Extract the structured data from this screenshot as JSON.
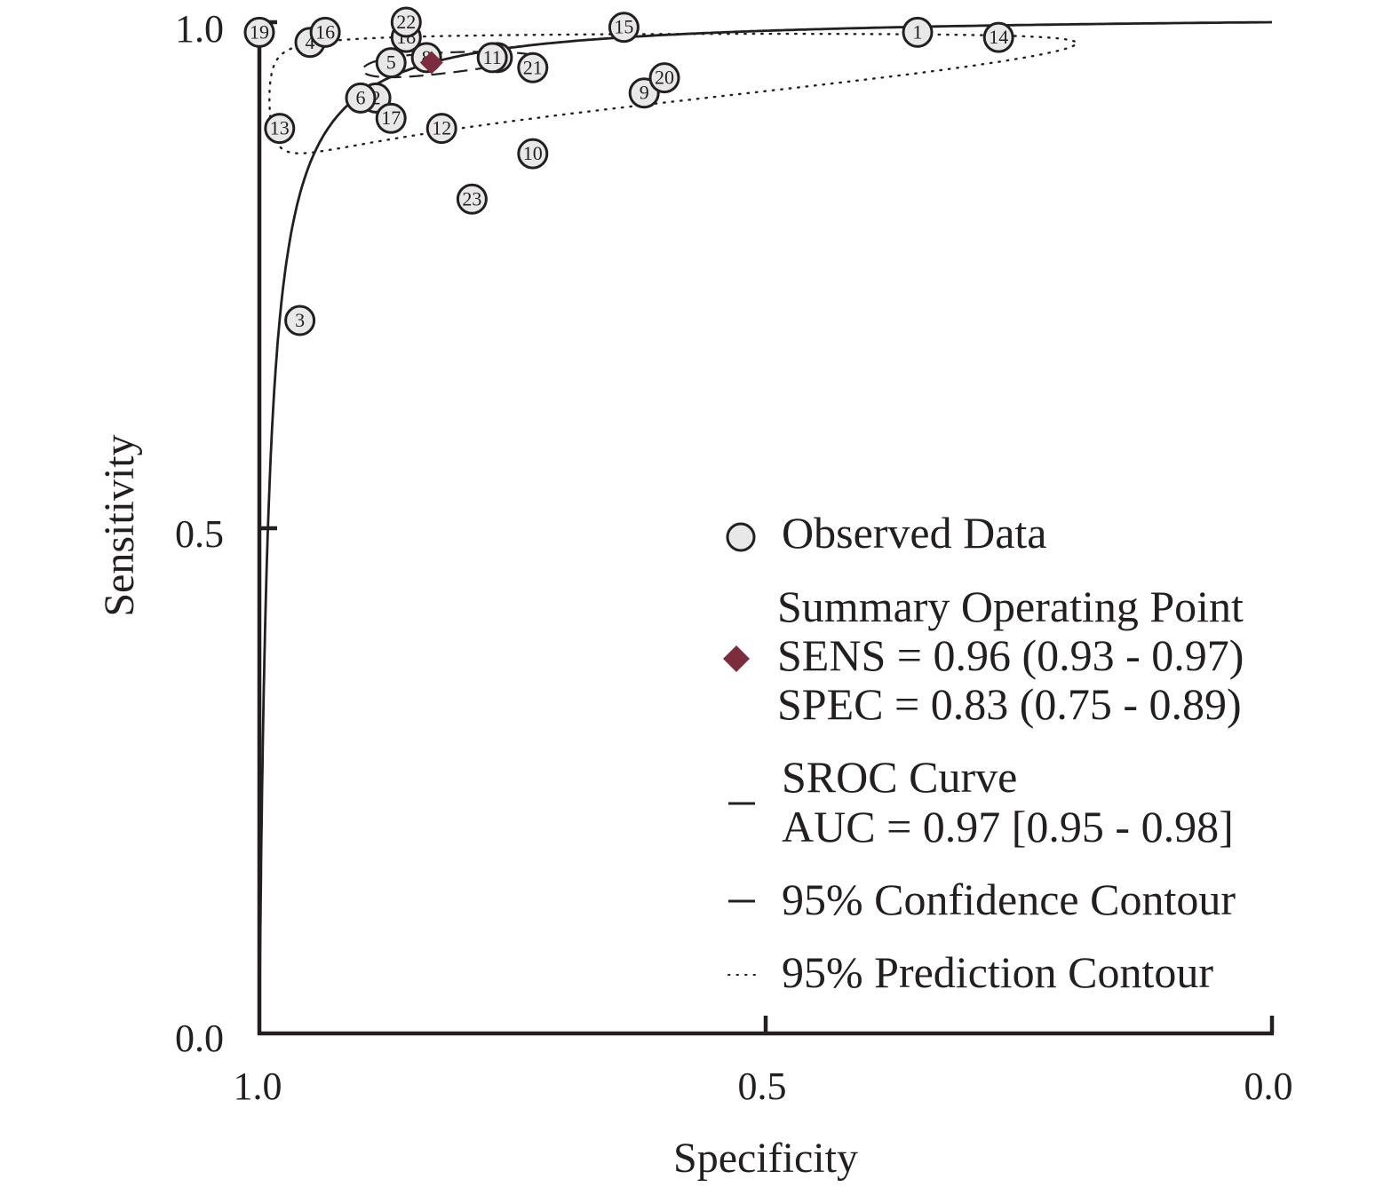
{
  "chart_data": {
    "type": "scatter",
    "title": "",
    "xlabel": "Specificity",
    "ylabel": "Sensitivity",
    "xlim": [
      1.0,
      0.0
    ],
    "ylim": [
      0.0,
      1.0
    ],
    "x_reversed": true,
    "xticks": [
      "1.0",
      "0.5",
      "0.0"
    ],
    "yticks": [
      "0.0",
      "0.5",
      "1.0"
    ],
    "grid": false,
    "legend_position": "lower-right",
    "observed_data": [
      {
        "id": "1",
        "spec": 0.35,
        "sens": 0.99
      },
      {
        "id": "2",
        "spec": 0.885,
        "sens": 0.925
      },
      {
        "id": "3",
        "spec": 0.96,
        "sens": 0.705
      },
      {
        "id": "4",
        "spec": 0.95,
        "sens": 0.98
      },
      {
        "id": "5",
        "spec": 0.87,
        "sens": 0.96
      },
      {
        "id": "6",
        "spec": 0.9,
        "sens": 0.925
      },
      {
        "id": "7",
        "spec": 0.765,
        "sens": 0.965
      },
      {
        "id": "8",
        "spec": 0.835,
        "sens": 0.965
      },
      {
        "id": "9",
        "spec": 0.62,
        "sens": 0.93
      },
      {
        "id": "10",
        "spec": 0.73,
        "sens": 0.87
      },
      {
        "id": "11",
        "spec": 0.77,
        "sens": 0.965
      },
      {
        "id": "12",
        "spec": 0.82,
        "sens": 0.895
      },
      {
        "id": "13",
        "spec": 0.98,
        "sens": 0.895
      },
      {
        "id": "14",
        "spec": 0.27,
        "sens": 0.985
      },
      {
        "id": "15",
        "spec": 0.64,
        "sens": 0.995
      },
      {
        "id": "16",
        "spec": 0.935,
        "sens": 0.99
      },
      {
        "id": "17",
        "spec": 0.87,
        "sens": 0.905
      },
      {
        "id": "18",
        "spec": 0.855,
        "sens": 0.985
      },
      {
        "id": "19",
        "spec": 1.0,
        "sens": 0.99
      },
      {
        "id": "20",
        "spec": 0.6,
        "sens": 0.945
      },
      {
        "id": "21",
        "spec": 0.73,
        "sens": 0.955
      },
      {
        "id": "22",
        "spec": 0.855,
        "sens": 1.0
      },
      {
        "id": "23",
        "spec": 0.79,
        "sens": 0.825
      }
    ],
    "summary_point": {
      "spec": 0.83,
      "sens": 0.96
    },
    "sroc_curve": {
      "auc": 0.97
    },
    "confidence_contour": {
      "center_spec": 0.83,
      "center_sens": 0.96
    },
    "prediction_contour": {
      "center_spec": 0.83,
      "center_sens": 0.96
    },
    "colors": {
      "axis": "#231f20",
      "point_fill": "#e8e8e8",
      "summary_marker": "#7b2d3e",
      "curve": "#231f20"
    },
    "legend": {
      "observed": "Observed Data",
      "summary_title": "Summary Operating Point",
      "summary_sens": "SENS = 0.96 (0.93 - 0.97)",
      "summary_spec": "SPEC = 0.83 (0.75 - 0.89)",
      "sroc_title": "SROC Curve",
      "sroc_auc": "AUC = 0.97 [0.95 - 0.98]",
      "confidence": "95% Confidence Contour",
      "prediction": "95% Prediction Contour"
    }
  }
}
